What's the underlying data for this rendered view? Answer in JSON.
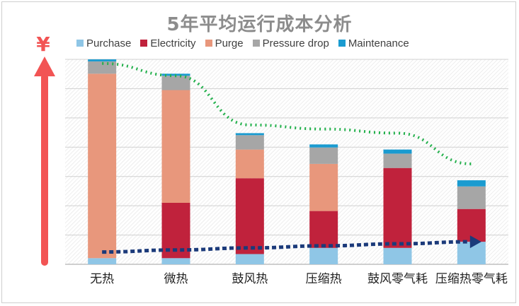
{
  "chart_data": {
    "type": "bar",
    "stacked": true,
    "title": "5年平均运行成本分析",
    "y_symbol": "¥",
    "categories": [
      "无热",
      "微热",
      "鼓风热",
      "压缩热",
      "鼓风零气耗",
      "压缩热零气耗"
    ],
    "ylim": [
      0,
      100
    ],
    "grid": true,
    "legend_position": "top",
    "series": [
      {
        "name": "Purchase",
        "color": "#8fc6e6",
        "values": [
          3,
          3,
          5,
          8,
          8,
          11
        ]
      },
      {
        "name": "Electricity",
        "color": "#c0223c",
        "values": [
          0,
          27,
          37,
          18,
          39,
          16
        ]
      },
      {
        "name": "Purge",
        "color": "#e8977c",
        "values": [
          90,
          55,
          14,
          23,
          0,
          0
        ]
      },
      {
        "name": "Pressure drop",
        "color": "#a6a6a6",
        "values": [
          6,
          7,
          7,
          8,
          7,
          11
        ]
      },
      {
        "name": "Maintenance",
        "color": "#1a9bd0",
        "values": [
          1,
          1,
          1,
          1.5,
          2,
          3
        ]
      }
    ],
    "trend_lines": [
      {
        "color": "#22b04b",
        "style": "dotted",
        "values": [
          98,
          92,
          68,
          66,
          64,
          49
        ]
      },
      {
        "color": "#1b3a7a",
        "style": "dotted",
        "arrow": "end",
        "values": [
          6,
          7,
          8,
          9,
          10,
          11
        ]
      }
    ]
  }
}
